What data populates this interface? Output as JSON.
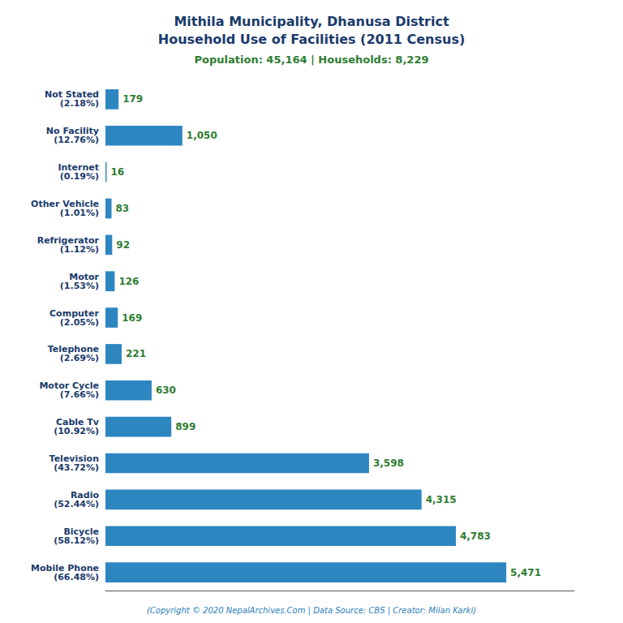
{
  "chart_data": {
    "type": "bar",
    "orientation": "horizontal",
    "title": "Mithila Municipality, Dhanusa District\nHousehold Use of Facilities (2011 Census)",
    "subtitle": "Population: 45,164 | Households: 8,229",
    "annotations": [
      "(Copyright © 2020 NepalArchives.Com | Data Source: CBS | Creator: Milan Karki)"
    ],
    "categories": [
      "Not Stated\n(2.18%)",
      "No Facility\n(12.76%)",
      "Internet\n(0.19%)",
      "Other Vehicle\n(1.01%)",
      "Refrigerator\n(1.12%)",
      "Motor\n(1.53%)",
      "Computer\n(2.05%)",
      "Telephone\n(2.69%)",
      "Motor Cycle\n(7.66%)",
      "Cable Tv\n(10.92%)",
      "Television\n(43.72%)",
      "Radio\n(52.44%)",
      "Bicycle\n(58.12%)",
      "Mobile Phone\n(66.48%)"
    ],
    "values": [
      179,
      1050,
      16,
      83,
      92,
      126,
      169,
      221,
      630,
      899,
      3598,
      4315,
      4783,
      5471
    ],
    "value_labels": [
      "179",
      "1,050",
      "16",
      "83",
      "92",
      "126",
      "169",
      "221",
      "630",
      "899",
      "3,598",
      "4,315",
      "4,783",
      "5,471"
    ],
    "data_labels": true,
    "color": "#2e86c1",
    "xlim": [
      0,
      6400
    ],
    "tick_labels": false,
    "grid": false
  }
}
